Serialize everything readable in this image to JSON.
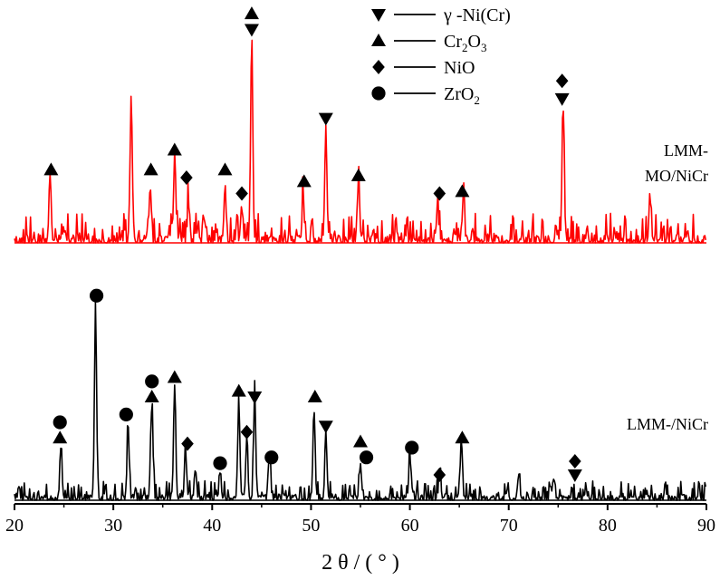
{
  "chart_data": {
    "type": "line",
    "xlabel": "2 θ / ( ° )",
    "ylabel": "",
    "xlim": [
      20,
      90
    ],
    "xticks": [
      "20",
      "30",
      "40",
      "50",
      "60",
      "70",
      "80",
      "90"
    ],
    "xtick_values": [
      20,
      30,
      40,
      50,
      60,
      70,
      80,
      90
    ],
    "grid": false,
    "legend_placement": "top-center",
    "legend": [
      {
        "marker": "triangle-down",
        "label": "γ -Ni(Cr)",
        "label_base": "γ -Ni(Cr)",
        "label_sub": ""
      },
      {
        "marker": "triangle-up",
        "label": "Cr2O3",
        "label_base": "Cr",
        "label_sub1": "2",
        "label_mid": "O",
        "label_sub2": "3"
      },
      {
        "marker": "diamond",
        "label": "NiO",
        "label_base": "NiO"
      },
      {
        "marker": "circle",
        "label": "ZrO2",
        "label_base": "ZrO",
        "label_sub1": "2"
      }
    ],
    "series": [
      {
        "name": "LMM-MO/NiCr",
        "name_line1": "LMM-",
        "name_line2": "MO/NiCr",
        "color": "#ff0000",
        "baseline": 0,
        "noise_level": 0.15,
        "peaks": [
          {
            "x": 23.6,
            "y": 0.33
          },
          {
            "x": 31.8,
            "y": 0.69
          },
          {
            "x": 33.7,
            "y": 0.22
          },
          {
            "x": 36.2,
            "y": 0.4
          },
          {
            "x": 37.6,
            "y": 0.18
          },
          {
            "x": 41.3,
            "y": 0.28
          },
          {
            "x": 43.0,
            "y": 0.16
          },
          {
            "x": 44.0,
            "y": 1.0
          },
          {
            "x": 49.2,
            "y": 0.22
          },
          {
            "x": 51.5,
            "y": 0.56
          },
          {
            "x": 54.8,
            "y": 0.3
          },
          {
            "x": 62.8,
            "y": 0.18
          },
          {
            "x": 65.4,
            "y": 0.22
          },
          {
            "x": 75.5,
            "y": 0.67
          },
          {
            "x": 84.3,
            "y": 0.22
          }
        ],
        "markers": [
          {
            "x": 23.7,
            "y": 0.37,
            "type": "triangle-up"
          },
          {
            "x": 33.8,
            "y": 0.37,
            "type": "triangle-up"
          },
          {
            "x": 36.2,
            "y": 0.47,
            "type": "triangle-up"
          },
          {
            "x": 37.4,
            "y": 0.33,
            "type": "diamond"
          },
          {
            "x": 41.3,
            "y": 0.37,
            "type": "triangle-up"
          },
          {
            "x": 43.0,
            "y": 0.25,
            "type": "diamond"
          },
          {
            "x": 44.0,
            "y": 1.16,
            "type": "triangle-up"
          },
          {
            "x": 44.0,
            "y": 1.08,
            "type": "triangle-down"
          },
          {
            "x": 49.3,
            "y": 0.31,
            "type": "triangle-up"
          },
          {
            "x": 51.5,
            "y": 0.63,
            "type": "triangle-down"
          },
          {
            "x": 54.8,
            "y": 0.34,
            "type": "triangle-up"
          },
          {
            "x": 63.0,
            "y": 0.25,
            "type": "diamond"
          },
          {
            "x": 65.3,
            "y": 0.26,
            "type": "triangle-up"
          },
          {
            "x": 75.4,
            "y": 0.82,
            "type": "diamond"
          },
          {
            "x": 75.4,
            "y": 0.73,
            "type": "triangle-down"
          }
        ]
      },
      {
        "name": "LMM-/NiCr",
        "color": "#000000",
        "baseline": 0,
        "noise_level": 0.1,
        "peaks": [
          {
            "x": 24.7,
            "y": 0.27
          },
          {
            "x": 28.2,
            "y": 0.96
          },
          {
            "x": 31.5,
            "y": 0.35
          },
          {
            "x": 33.9,
            "y": 0.48
          },
          {
            "x": 36.2,
            "y": 0.57
          },
          {
            "x": 37.3,
            "y": 0.23
          },
          {
            "x": 38.3,
            "y": 0.15
          },
          {
            "x": 40.8,
            "y": 0.14
          },
          {
            "x": 42.7,
            "y": 0.48
          },
          {
            "x": 43.5,
            "y": 0.3
          },
          {
            "x": 44.3,
            "y": 0.52
          },
          {
            "x": 45.8,
            "y": 0.22
          },
          {
            "x": 50.3,
            "y": 0.46
          },
          {
            "x": 51.5,
            "y": 0.3
          },
          {
            "x": 55.0,
            "y": 0.18
          },
          {
            "x": 60.0,
            "y": 0.21
          },
          {
            "x": 63.0,
            "y": 0.11
          },
          {
            "x": 65.2,
            "y": 0.29
          },
          {
            "x": 71.0,
            "y": 0.12
          },
          {
            "x": 74.5,
            "y": 0.1
          }
        ],
        "markers": [
          {
            "x": 24.6,
            "y": 0.4,
            "type": "circle"
          },
          {
            "x": 24.6,
            "y": 0.32,
            "type": "triangle-up"
          },
          {
            "x": 28.3,
            "y": 1.05,
            "type": "circle"
          },
          {
            "x": 31.3,
            "y": 0.44,
            "type": "circle"
          },
          {
            "x": 33.9,
            "y": 0.61,
            "type": "circle"
          },
          {
            "x": 33.9,
            "y": 0.53,
            "type": "triangle-up"
          },
          {
            "x": 36.2,
            "y": 0.63,
            "type": "triangle-up"
          },
          {
            "x": 37.5,
            "y": 0.29,
            "type": "diamond"
          },
          {
            "x": 40.8,
            "y": 0.19,
            "type": "circle"
          },
          {
            "x": 42.7,
            "y": 0.56,
            "type": "triangle-up"
          },
          {
            "x": 43.5,
            "y": 0.35,
            "type": "diamond"
          },
          {
            "x": 44.3,
            "y": 0.53,
            "type": "triangle-down"
          },
          {
            "x": 46.0,
            "y": 0.22,
            "type": "circle"
          },
          {
            "x": 50.4,
            "y": 0.53,
            "type": "triangle-up"
          },
          {
            "x": 51.5,
            "y": 0.38,
            "type": "triangle-down"
          },
          {
            "x": 55.0,
            "y": 0.3,
            "type": "triangle-up"
          },
          {
            "x": 55.6,
            "y": 0.22,
            "type": "circle"
          },
          {
            "x": 60.2,
            "y": 0.27,
            "type": "circle"
          },
          {
            "x": 63.0,
            "y": 0.13,
            "type": "diamond"
          },
          {
            "x": 65.3,
            "y": 0.32,
            "type": "triangle-up"
          },
          {
            "x": 76.7,
            "y": 0.2,
            "type": "diamond"
          },
          {
            "x": 76.7,
            "y": 0.13,
            "type": "triangle-down"
          }
        ]
      }
    ]
  }
}
